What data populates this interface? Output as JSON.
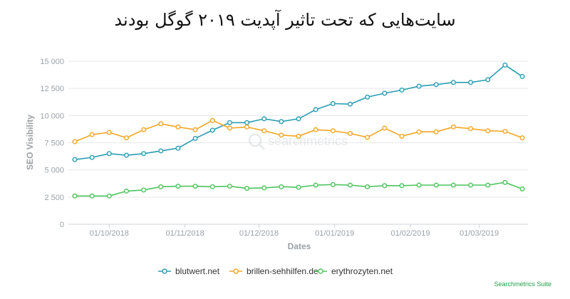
{
  "title": "سایت‌هایی که تحت تاثیر آپدیت ۲۰۱۹ گوگل بودند",
  "credit": "Searchmetrics Suite",
  "watermark": "searchmetrics",
  "chart_data": {
    "type": "line",
    "xlabel": "Dates",
    "ylabel": "SEO Visibility",
    "ylim": [
      0,
      15000
    ],
    "y_ticks": [
      {
        "value": 0,
        "label": "0"
      },
      {
        "value": 2500,
        "label": "2 500"
      },
      {
        "value": 5000,
        "label": "5 000"
      },
      {
        "value": 7500,
        "label": "7 500"
      },
      {
        "value": 10000,
        "label": "10 000"
      },
      {
        "value": 12500,
        "label": "12 500"
      },
      {
        "value": 15000,
        "label": "15 000"
      }
    ],
    "x_ticks": [
      {
        "index": 2,
        "label": "01/10/2018"
      },
      {
        "index": 6.4,
        "label": "01/11/2018"
      },
      {
        "index": 10.7,
        "label": "01/12/2018"
      },
      {
        "index": 15.1,
        "label": "01/01/2019"
      },
      {
        "index": 19.5,
        "label": "01/02/2019"
      },
      {
        "index": 23.5,
        "label": "01/03/2019"
      }
    ],
    "grid": true,
    "legend_position": "bottom",
    "series": [
      {
        "name": "blutwert.net",
        "color": "#2a9db4",
        "values": [
          5950,
          6150,
          6500,
          6350,
          6500,
          6750,
          7000,
          7900,
          8650,
          9350,
          9350,
          9700,
          9450,
          9700,
          10550,
          11100,
          11050,
          11700,
          12050,
          12350,
          12700,
          12850,
          13050,
          13050,
          13300,
          14650,
          13600
        ]
      },
      {
        "name": "brillen-sehhilfen.de",
        "color": "#f5a623",
        "values": [
          7600,
          8250,
          8450,
          7950,
          8700,
          9250,
          8950,
          8700,
          9550,
          8850,
          8950,
          8600,
          8200,
          8100,
          8700,
          8600,
          8350,
          8000,
          8850,
          8100,
          8500,
          8500,
          8950,
          8800,
          8600,
          8550,
          7950
        ]
      },
      {
        "name": "erythrozyten.net",
        "color": "#4cc45d",
        "values": [
          2600,
          2600,
          2600,
          3050,
          3150,
          3450,
          3500,
          3500,
          3450,
          3500,
          3300,
          3350,
          3450,
          3400,
          3600,
          3650,
          3600,
          3450,
          3550,
          3550,
          3600,
          3600,
          3600,
          3600,
          3600,
          3850,
          3250
        ]
      }
    ]
  }
}
